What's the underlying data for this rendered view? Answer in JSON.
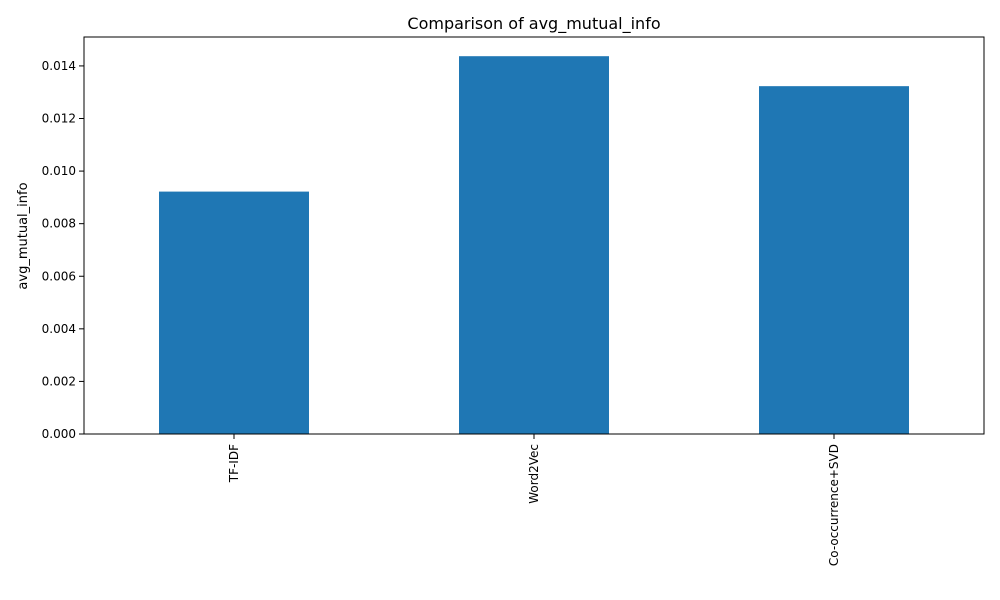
{
  "chart_data": {
    "type": "bar",
    "title": "Comparison of avg_mutual_info",
    "xlabel": "",
    "ylabel": "avg_mutual_info",
    "categories": [
      "TF-IDF",
      "Word2Vec",
      "Co-occurrence+SVD"
    ],
    "values": [
      0.00922,
      0.01437,
      0.01323
    ],
    "ylim": [
      0,
      0.0151
    ],
    "yticks": [
      0.0,
      0.002,
      0.004,
      0.006,
      0.008,
      0.01,
      0.012,
      0.014
    ],
    "ytick_labels": [
      "0.000",
      "0.002",
      "0.004",
      "0.006",
      "0.008",
      "0.010",
      "0.012",
      "0.014"
    ],
    "bar_color": "#1f77b4",
    "grid": false,
    "legend": "none"
  }
}
